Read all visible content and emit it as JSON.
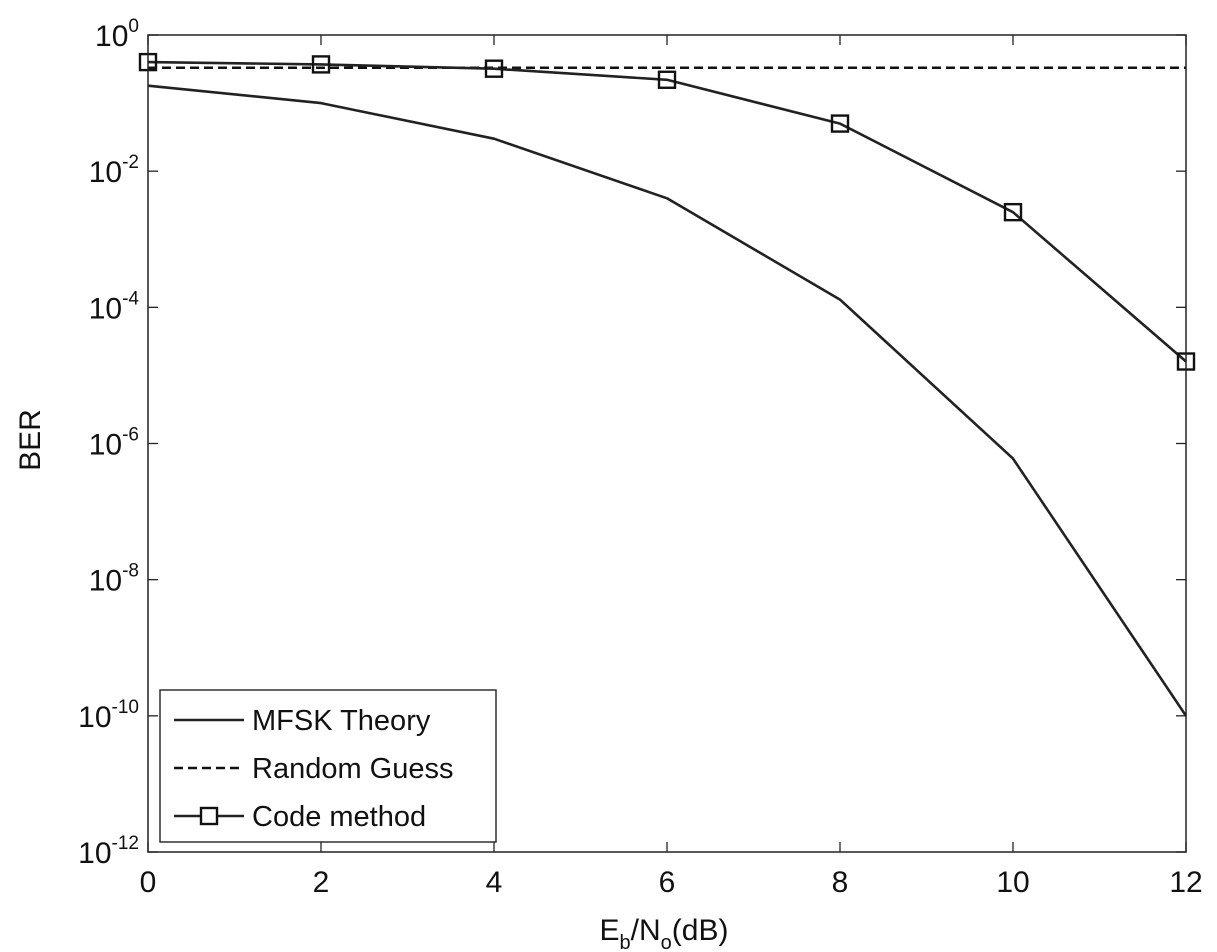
{
  "chart_data": {
    "type": "line",
    "title": "",
    "xlabel": {
      "main_e": "E",
      "sub_b": "b",
      "slash_n": "/N",
      "sub_o": "o",
      "unit": "(dB)"
    },
    "ylabel": "BER",
    "xlim": [
      0,
      12
    ],
    "ylim": [
      1e-12,
      1
    ],
    "yscale": "log",
    "grid": false,
    "legend_position": "bottom-left",
    "x_ticks": [
      "0",
      "2",
      "4",
      "6",
      "8",
      "10",
      "12"
    ],
    "y_ticks": [
      {
        "base": "10",
        "exp": "0"
      },
      {
        "base": "10",
        "exp": "-2"
      },
      {
        "base": "10",
        "exp": "-4"
      },
      {
        "base": "10",
        "exp": "-6"
      },
      {
        "base": "10",
        "exp": "-8"
      },
      {
        "base": "10",
        "exp": "-10"
      },
      {
        "base": "10",
        "exp": "-12"
      }
    ],
    "x": [
      0,
      2,
      4,
      6,
      8,
      10,
      12
    ],
    "series": [
      {
        "name": "MFSK Theory",
        "style": "solid",
        "marker": "none",
        "color": "#222222",
        "values": [
          0.18,
          0.1,
          0.03,
          0.004,
          0.00013,
          6e-07,
          1e-10
        ]
      },
      {
        "name": "Random Guess",
        "style": "dashed",
        "marker": "none",
        "color": "#111111",
        "values": [
          0.33,
          0.33,
          0.33,
          0.33,
          0.33,
          0.33,
          0.33
        ]
      },
      {
        "name": "Code method",
        "style": "solid",
        "marker": "square",
        "color": "#222222",
        "values": [
          0.4,
          0.37,
          0.32,
          0.22,
          0.05,
          0.0025,
          1.6e-05
        ]
      }
    ]
  }
}
